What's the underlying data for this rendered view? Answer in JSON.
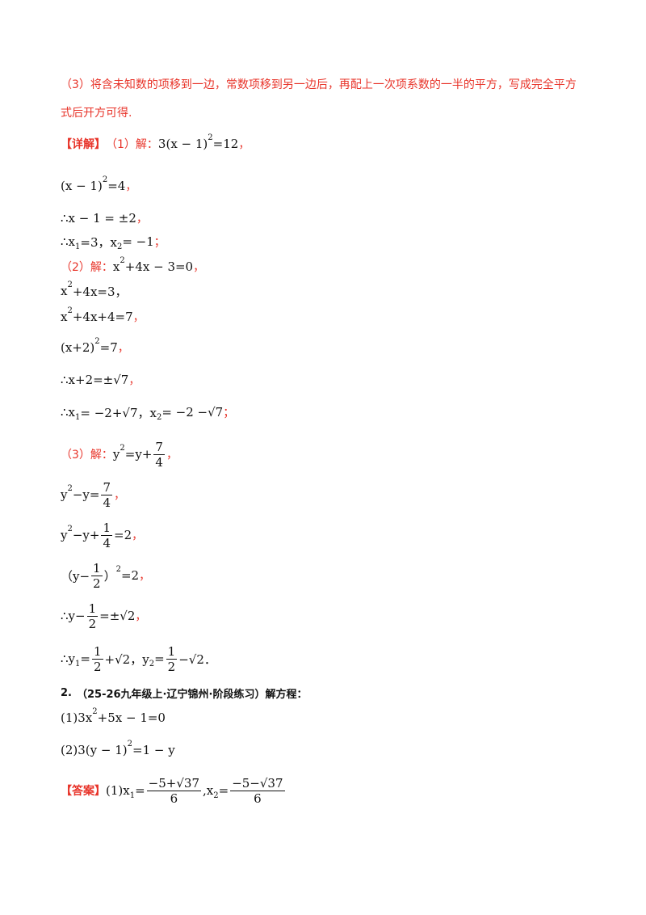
{
  "lines": [
    [
      "（3）将含未知数的项移到一边，常数项移到另一边后，再配上一次项系数的一半的平方，写成完全平方"
    ],
    [
      "式后开方可得."
    ],
    [
      "【详解】",
      "（1）解：",
      "3(x − 1)",
      "2",
      "=12",
      "，"
    ],
    [
      "(x − 1)",
      "2",
      "=4",
      "，"
    ],
    [
      "∴x − 1 = ±2",
      "，"
    ],
    [
      "∴x",
      "1",
      "=3，x",
      "2",
      "= −1",
      "；"
    ],
    [
      "（2）解：",
      "x",
      "2",
      "+4x − 3=0",
      "，"
    ],
    [
      "x",
      "2",
      "+4x=3，"
    ],
    [
      "x",
      "2",
      "+4x+4=7",
      "，"
    ],
    [
      "(x+2)",
      "2",
      "=7",
      "，"
    ],
    [
      "∴x+2=±√7",
      "，"
    ],
    [
      "∴x",
      "1",
      "= −2+√7，x",
      "2",
      "= −2 −√7",
      "；"
    ],
    [
      "（3）解：",
      "y",
      "2",
      "=y+",
      "7",
      "4",
      "，"
    ],
    [
      "y",
      "2",
      "−y=",
      "7",
      "4",
      "，"
    ],
    [
      "y",
      "2",
      "−y+",
      "1",
      "4",
      "=2",
      "，"
    ],
    [
      "（y−",
      "1",
      "2",
      "）",
      "2",
      "=2",
      "，"
    ],
    [
      "∴y−",
      "1",
      "2",
      "=±√2",
      "，"
    ],
    [
      "∴y",
      "1",
      "=",
      "1",
      "2",
      "+√2，y",
      "2",
      "=",
      "1",
      "2",
      "−√2．"
    ],
    [
      "2.",
      "（25-26九年级上·辽宁锦州·阶段练习）解方程："
    ],
    [
      "(1)3x",
      "2",
      "+5x − 1=0"
    ],
    [
      "(2)3(y − 1)",
      "2",
      "=1 − y"
    ],
    [
      "【答案】",
      "(1)x",
      "1",
      "=",
      "−5+√37",
      "6",
      ",x",
      "2",
      "=",
      "−5−√37",
      "6"
    ]
  ]
}
